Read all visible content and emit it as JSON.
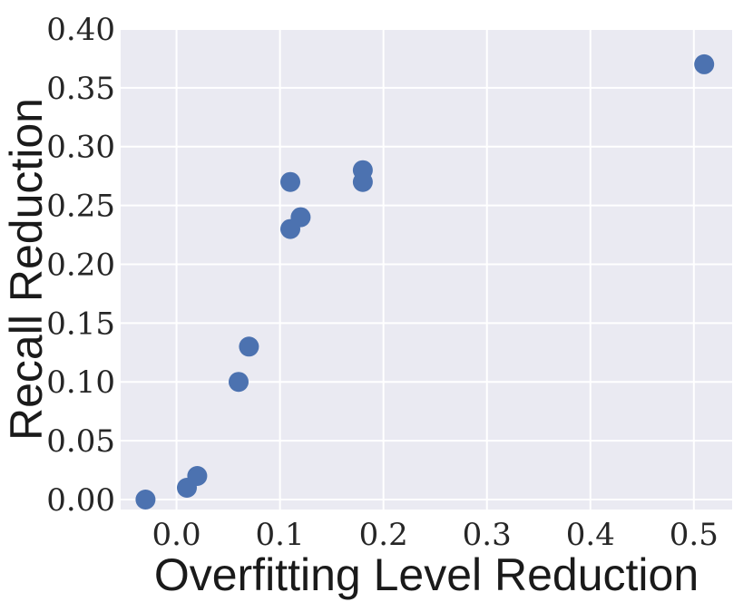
{
  "figure_title": "",
  "chart_data": {
    "type": "scatter",
    "title": "",
    "xlabel": "Overfitting Level Reduction",
    "ylabel": "Recall Reduction",
    "x": [
      -0.03,
      0.01,
      0.02,
      0.06,
      0.07,
      0.12,
      0.11,
      0.11,
      0.18,
      0.18,
      0.51
    ],
    "y": [
      0.0,
      0.01,
      0.02,
      0.1,
      0.13,
      0.24,
      0.23,
      0.27,
      0.27,
      0.28,
      0.37
    ],
    "x_ticks": [
      0.0,
      0.1,
      0.2,
      0.3,
      0.4,
      0.5
    ],
    "x_tick_labels": [
      "0.0",
      "0.1",
      "0.2",
      "0.3",
      "0.4",
      "0.5"
    ],
    "y_ticks": [
      0.0,
      0.05,
      0.1,
      0.15,
      0.2,
      0.25,
      0.3,
      0.35,
      0.4
    ],
    "y_tick_labels": [
      "0.00",
      "0.05",
      "0.10",
      "0.15",
      "0.20",
      "0.25",
      "0.30",
      "0.35",
      "0.40"
    ],
    "xlim": [
      -0.054,
      0.537
    ],
    "ylim": [
      -0.0085,
      0.4
    ],
    "grid": true,
    "legend": "none",
    "plot_bg": "#EAEAF2",
    "grid_color": "#FFFFFF",
    "marker_color": "#4C72B0",
    "marker_radius_px": 11,
    "tick_color": "#262626",
    "label_color": "#1a1a1a"
  }
}
